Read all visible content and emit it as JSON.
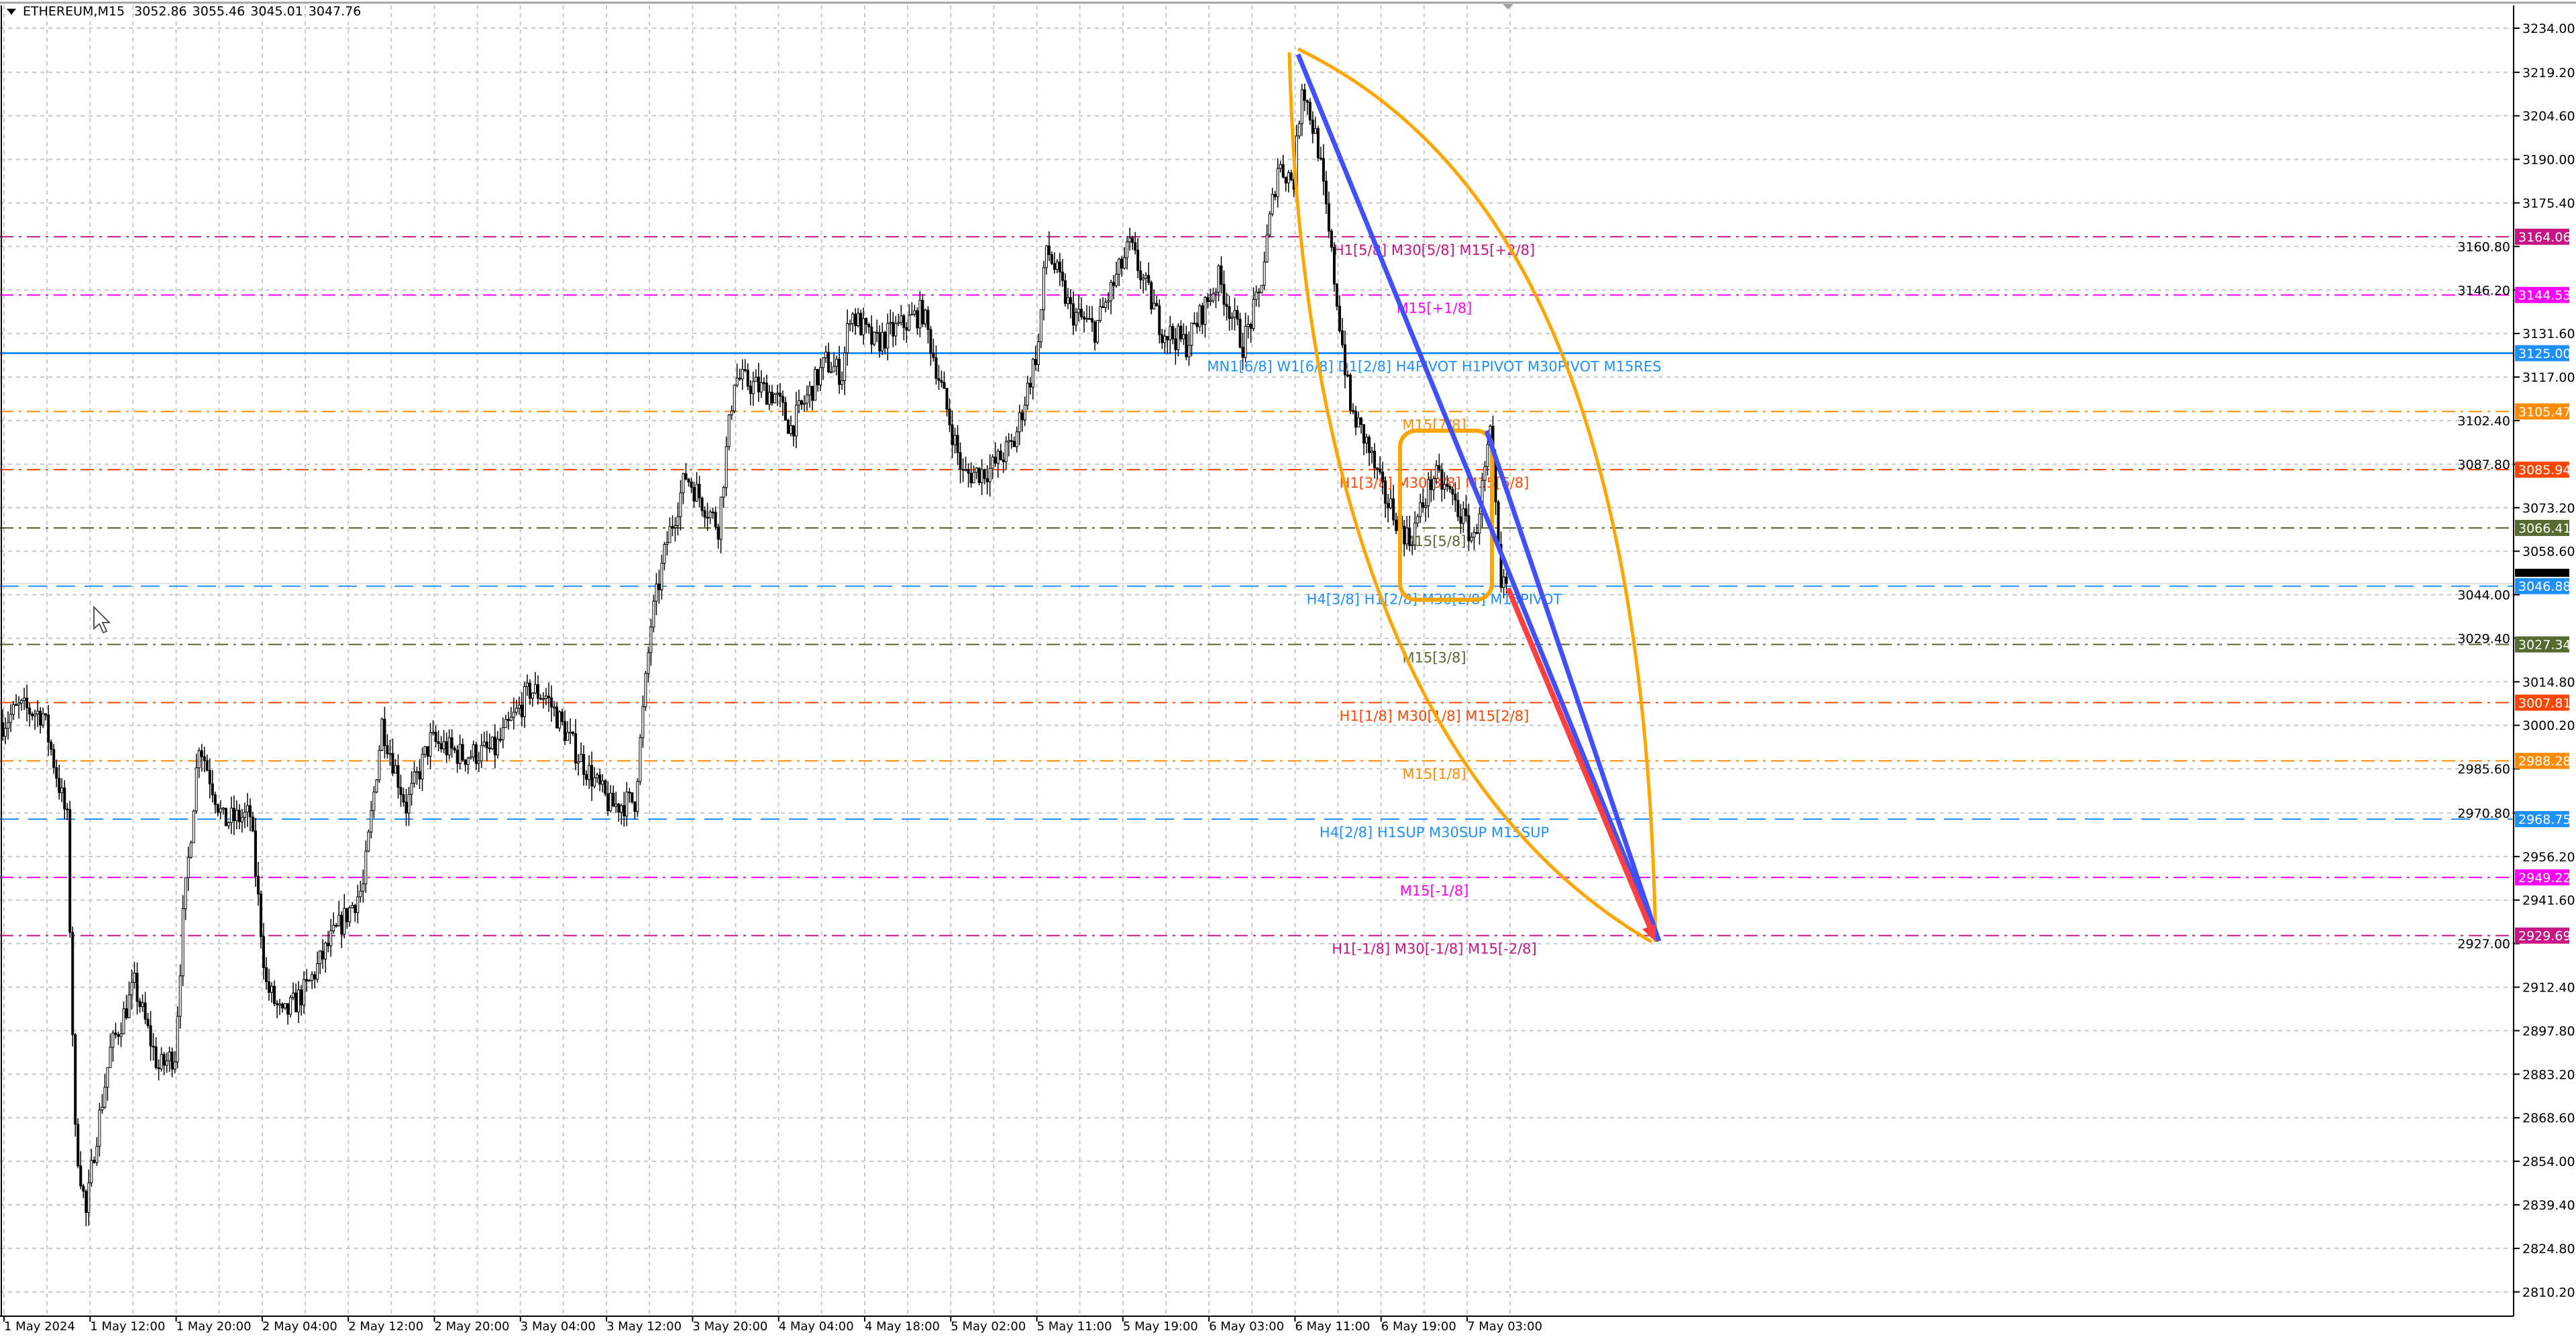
{
  "header": {
    "symbol": "ETHEREUM,M15",
    "open": "3052.86",
    "high": "3055.46",
    "low": "3045.01",
    "close": "3047.76"
  },
  "chart_data": {
    "type": "candlestick",
    "title": "ETHEREUM,M15",
    "ylim": [
      2803.0,
      3240.0
    ],
    "grid": true,
    "current_price": 3047.76,
    "current_price_label": "3047.76",
    "y_ticks": [
      "3234.00",
      "3219.20",
      "3204.60",
      "3190.00",
      "3175.40",
      "3160.80",
      "3146.20",
      "3131.60",
      "3117.00",
      "3102.40",
      "3087.80",
      "3073.20",
      "3058.60",
      "3044.00",
      "3029.40",
      "3014.80",
      "3000.20",
      "2985.60",
      "2970.80",
      "2956.20",
      "2941.60",
      "2927.00",
      "2912.40",
      "2897.80",
      "2883.20",
      "2868.60",
      "2854.00",
      "2839.40",
      "2824.80",
      "2810.20"
    ],
    "x_ticks": [
      "1 May 2024",
      "1 May 12:00",
      "1 May 20:00",
      "2 May 04:00",
      "2 May 12:00",
      "2 May 20:00",
      "3 May 04:00",
      "3 May 12:00",
      "3 May 20:00",
      "4 May 04:00",
      "4 May 18:00",
      "5 May 02:00",
      "5 May 11:00",
      "5 May 19:00",
      "6 May 03:00",
      "6 May 11:00",
      "6 May 19:00",
      "7 May 03:00"
    ],
    "close_path_bar_price": [
      [
        0,
        3001
      ],
      [
        6,
        3006
      ],
      [
        15,
        3004
      ],
      [
        24,
        2968
      ],
      [
        27,
        2863
      ],
      [
        31,
        2836
      ],
      [
        34,
        2858
      ],
      [
        40,
        2891
      ],
      [
        49,
        2913
      ],
      [
        58,
        2885
      ],
      [
        64,
        2890
      ],
      [
        67,
        2935
      ],
      [
        73,
        2995
      ],
      [
        82,
        2968
      ],
      [
        92,
        2970
      ],
      [
        98,
        2913
      ],
      [
        104,
        2902
      ],
      [
        113,
        2912
      ],
      [
        122,
        2928
      ],
      [
        134,
        2946
      ],
      [
        141,
        3001
      ],
      [
        150,
        2973
      ],
      [
        159,
        2995
      ],
      [
        171,
        2990
      ],
      [
        183,
        2992
      ],
      [
        196,
        3012
      ],
      [
        202,
        3010
      ],
      [
        214,
        2990
      ],
      [
        226,
        2973
      ],
      [
        235,
        2975
      ],
      [
        241,
        3034
      ],
      [
        247,
        3062
      ],
      [
        254,
        3084
      ],
      [
        266,
        3067
      ],
      [
        272,
        3117
      ],
      [
        287,
        3111
      ],
      [
        293,
        3100
      ],
      [
        306,
        3122
      ],
      [
        312,
        3118
      ],
      [
        315,
        3139
      ],
      [
        324,
        3128
      ],
      [
        342,
        3139
      ],
      [
        348,
        3117
      ],
      [
        357,
        3084
      ],
      [
        367,
        3086
      ],
      [
        376,
        3095
      ],
      [
        385,
        3128
      ],
      [
        388,
        3161
      ],
      [
        397,
        3139
      ],
      [
        406,
        3133
      ],
      [
        419,
        3161
      ],
      [
        431,
        3133
      ],
      [
        440,
        3128
      ],
      [
        452,
        3150
      ],
      [
        461,
        3128
      ],
      [
        467,
        3144
      ],
      [
        474,
        3188
      ],
      [
        480,
        3183
      ],
      [
        483,
        3216
      ],
      [
        489,
        3194
      ],
      [
        495,
        3150
      ],
      [
        501,
        3106
      ],
      [
        507,
        3095
      ],
      [
        513,
        3078
      ],
      [
        523,
        3062
      ],
      [
        532,
        3084
      ],
      [
        538,
        3078
      ],
      [
        547,
        3062
      ],
      [
        553,
        3097
      ],
      [
        557,
        3045
      ],
      [
        559,
        3047.76
      ]
    ],
    "levels": [
      {
        "price": 3164.06,
        "badge": "3164.06",
        "label": "H1[5/8] M30[5/8] M15[+2/8]",
        "color": "#c71585",
        "style": "dashdot"
      },
      {
        "price": 3144.53,
        "badge": "3144.53",
        "label": "M15[+1/8]",
        "color": "#ff00ff",
        "style": "dashdot"
      },
      {
        "price": 3125.0,
        "badge": "3125.00",
        "label": "MN1[6/8] W1[6/8] D1[2/8] H4PIVOT H1PIVOT M30PIVOT M15RES",
        "color": "#1e90ff",
        "style": "solid"
      },
      {
        "price": 3105.47,
        "badge": "3105.47",
        "label": "M15[7/8]",
        "color": "#ff8c00",
        "style": "dashdot"
      },
      {
        "price": 3085.94,
        "badge": "3085.94",
        "label": "H1[3/8] M30[3/8] M15[6/8]",
        "color": "#ff4500",
        "style": "dashdot"
      },
      {
        "price": 3066.41,
        "badge": "3066.41",
        "label": "M15[5/8]",
        "color": "#556b2f",
        "style": "dashdot"
      },
      {
        "price": 3046.88,
        "badge": "3046.88",
        "label": "H4[3/8] H1[2/8] M30[2/8] M15PIVOT",
        "color": "#1e90ff",
        "style": "dash"
      },
      {
        "price": 3027.34,
        "badge": "3027.34",
        "label": "M15[3/8]",
        "color": "#556b2f",
        "style": "dashdot"
      },
      {
        "price": 3007.81,
        "badge": "3007.81",
        "label": "H1[1/8] M30[1/8] M15[2/8]",
        "color": "#ff4500",
        "style": "dashdot"
      },
      {
        "price": 2988.28,
        "badge": "2988.28",
        "label": "M15[1/8]",
        "color": "#ff8c00",
        "style": "dashdot"
      },
      {
        "price": 2968.75,
        "badge": "2968.75",
        "label": "H4[2/8] H1SUP M30SUP M15SUP",
        "color": "#1e90ff",
        "style": "dash"
      },
      {
        "price": 2949.22,
        "badge": "2949.22",
        "label": "M15[-1/8]",
        "color": "#ff00ff",
        "style": "dashdot"
      },
      {
        "price": 2929.69,
        "badge": "2929.69",
        "label": "H1[-1/8] M30[-1/8] M15[-2/8]",
        "color": "#c71585",
        "style": "dashdot"
      }
    ],
    "drawing_colors": {
      "projection": "#4050ff",
      "arrow": "#ff4040",
      "arc": "#ffa500"
    }
  }
}
